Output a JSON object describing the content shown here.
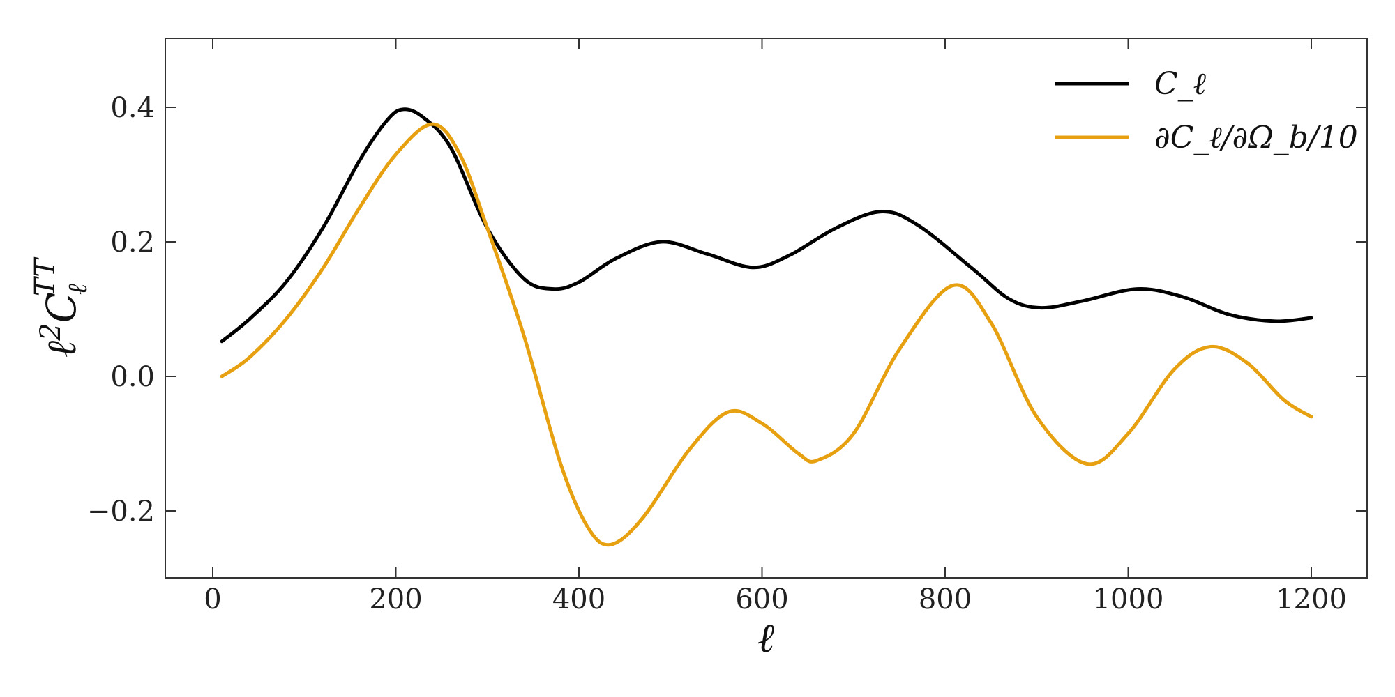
{
  "chart_data": {
    "type": "line",
    "title": "",
    "xlabel": "ℓ",
    "ylabel": "ℓ²C_ℓ^TT",
    "xlim": [
      -50,
      1260
    ],
    "ylim": [
      -0.3,
      0.5
    ],
    "x_ticks": [
      0,
      200,
      400,
      600,
      800,
      1000,
      1200
    ],
    "y_ticks": [
      -0.2,
      0.0,
      0.2,
      0.4
    ],
    "x_tick_labels": [
      "0",
      "200",
      "400",
      "600",
      "800",
      "1000",
      "1200"
    ],
    "y_tick_labels": [
      "−0.2",
      "0.0",
      "0.2",
      "0.4"
    ],
    "grid": false,
    "legend_position": "top-right",
    "series": [
      {
        "name": "C_ℓ",
        "color": "#000000",
        "points": [
          [
            10,
            0.052
          ],
          [
            40,
            0.085
          ],
          [
            80,
            0.14
          ],
          [
            120,
            0.22
          ],
          [
            160,
            0.32
          ],
          [
            190,
            0.38
          ],
          [
            208,
            0.397
          ],
          [
            230,
            0.385
          ],
          [
            260,
            0.34
          ],
          [
            300,
            0.22
          ],
          [
            340,
            0.145
          ],
          [
            372,
            0.13
          ],
          [
            400,
            0.14
          ],
          [
            440,
            0.175
          ],
          [
            490,
            0.2
          ],
          [
            540,
            0.182
          ],
          [
            590,
            0.162
          ],
          [
            630,
            0.18
          ],
          [
            680,
            0.22
          ],
          [
            730,
            0.245
          ],
          [
            770,
            0.225
          ],
          [
            830,
            0.16
          ],
          [
            870,
            0.115
          ],
          [
            905,
            0.102
          ],
          [
            950,
            0.112
          ],
          [
            1010,
            0.13
          ],
          [
            1060,
            0.118
          ],
          [
            1110,
            0.092
          ],
          [
            1160,
            0.082
          ],
          [
            1200,
            0.087
          ]
        ]
      },
      {
        "name": "∂C_ℓ/∂Ω_b/10",
        "color": "#e6a010",
        "points": [
          [
            10,
            0.0
          ],
          [
            40,
            0.028
          ],
          [
            80,
            0.085
          ],
          [
            120,
            0.16
          ],
          [
            160,
            0.25
          ],
          [
            200,
            0.33
          ],
          [
            240,
            0.375
          ],
          [
            270,
            0.33
          ],
          [
            300,
            0.22
          ],
          [
            340,
            0.06
          ],
          [
            380,
            -0.13
          ],
          [
            410,
            -0.225
          ],
          [
            435,
            -0.25
          ],
          [
            470,
            -0.21
          ],
          [
            520,
            -0.11
          ],
          [
            563,
            -0.053
          ],
          [
            600,
            -0.07
          ],
          [
            640,
            -0.115
          ],
          [
            660,
            -0.125
          ],
          [
            700,
            -0.085
          ],
          [
            750,
            0.04
          ],
          [
            808,
            0.135
          ],
          [
            850,
            0.08
          ],
          [
            900,
            -0.06
          ],
          [
            955,
            -0.13
          ],
          [
            1000,
            -0.085
          ],
          [
            1050,
            0.01
          ],
          [
            1090,
            0.044
          ],
          [
            1130,
            0.02
          ],
          [
            1170,
            -0.035
          ],
          [
            1200,
            -0.06
          ]
        ]
      }
    ]
  }
}
